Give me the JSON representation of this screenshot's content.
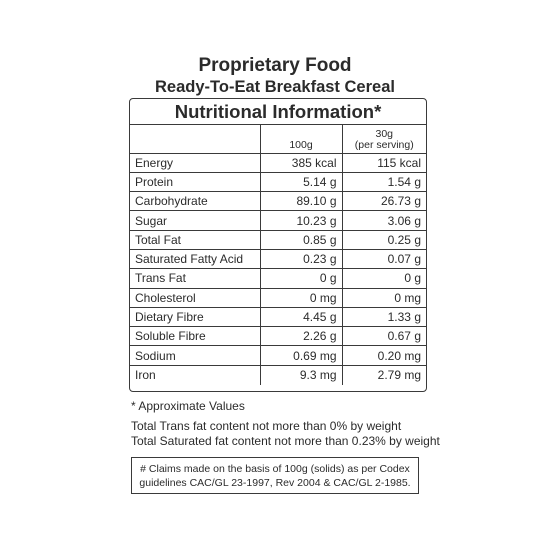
{
  "header": {
    "title": "Proprietary Food",
    "subtitle": "Ready-To-Eat Breakfast Cereal"
  },
  "panel": {
    "title": "Nutritional Information*",
    "columns": {
      "per100": "100g",
      "serving_line1": "30g",
      "serving_line2": "(per serving)"
    },
    "rows": [
      {
        "name": "Energy",
        "per100": "385 kcal",
        "serving": "115 kcal"
      },
      {
        "name": "Protein",
        "per100": "5.14 g",
        "serving": "1.54 g"
      },
      {
        "name": "Carbohydrate",
        "per100": "89.10 g",
        "serving": "26.73 g"
      },
      {
        "name": "Sugar",
        "per100": "10.23 g",
        "serving": "3.06 g"
      },
      {
        "name": "Total Fat",
        "per100": "0.85 g",
        "serving": "0.25 g"
      },
      {
        "name": "Saturated Fatty Acid",
        "per100": "0.23 g",
        "serving": "0.07 g"
      },
      {
        "name": "Trans Fat",
        "per100": "0 g",
        "serving": "0 g"
      },
      {
        "name": "Cholesterol",
        "per100": "0 mg",
        "serving": "0 mg"
      },
      {
        "name": "Dietary Fibre",
        "per100": "4.45 g",
        "serving": "1.33 g"
      },
      {
        "name": "Soluble Fibre",
        "per100": "2.26 g",
        "serving": "0.67 g"
      },
      {
        "name": "Sodium",
        "per100": "0.69 mg",
        "serving": "0.20 mg"
      },
      {
        "name": "Iron",
        "per100": "9.3 mg",
        "serving": "2.79 mg"
      }
    ]
  },
  "notes": {
    "approx": "* Approximate Values",
    "trans": "Total Trans fat content not more than 0% by weight",
    "satfat": "Total Saturated fat content not more than 0.23% by weight"
  },
  "claims": {
    "line1": "# Claims made on the basis of 100g (solids) as per Codex",
    "line2": "guidelines CAC/GL 23-1997, Rev 2004 & CAC/GL 2-1985."
  }
}
